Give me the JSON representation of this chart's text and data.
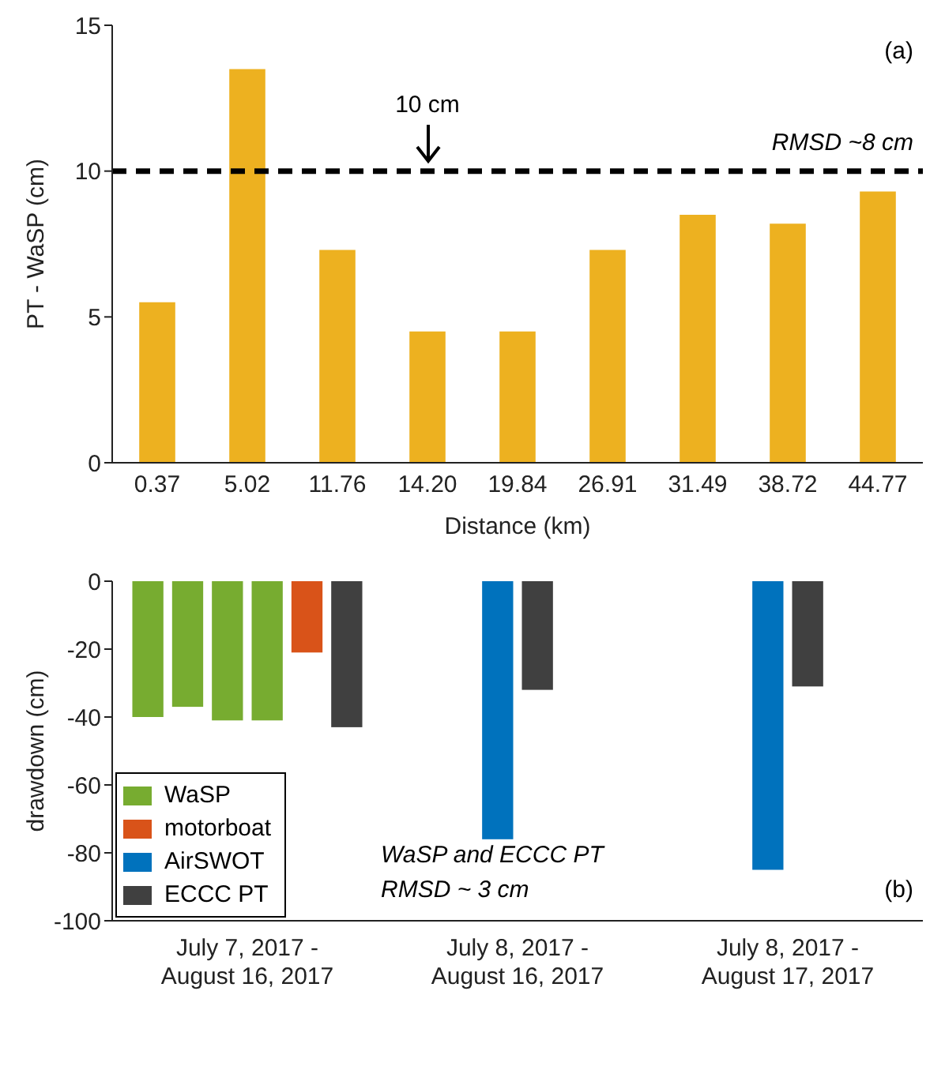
{
  "chart_data": [
    {
      "type": "bar",
      "categories": [
        "0.37",
        "5.02",
        "11.76",
        "14.20",
        "19.84",
        "26.91",
        "31.49",
        "38.72",
        "44.77"
      ],
      "values": [
        5.5,
        13.5,
        7.3,
        4.5,
        4.5,
        7.3,
        8.5,
        8.2,
        9.3
      ],
      "color": "#edb120",
      "xlabel": "Distance (km)",
      "ylabel": "PT - WaSP (cm)",
      "ylim": [
        0,
        15
      ],
      "yticks": [
        0,
        5,
        10,
        15
      ],
      "ref_lines": [
        {
          "axis": "y",
          "value": 10,
          "label": null,
          "color": "#000000",
          "line_style": "dashed"
        }
      ],
      "annotations": [
        "(a)",
        {
          "text": "10 cm",
          "x": "14.20",
          "y": 10
        },
        "RMSD ~8 cm"
      ]
    },
    {
      "type": "bar",
      "categories": [
        "July 7, 2017 -\nAugust 16, 2017",
        "July 8, 2017 -\nAugust 16, 2017",
        "July 8, 2017 -\nAugust 17, 2017"
      ],
      "ylabel": "drawdown (cm)",
      "ylim": [
        -100,
        0
      ],
      "yticks": [
        -100,
        -80,
        -60,
        -40,
        -20,
        0
      ],
      "legend": "bottom left",
      "series": [
        {
          "name": "WaSP",
          "color": "#77ac30",
          "values": [
            -40,
            null,
            null
          ]
        },
        {
          "color": "#77ac30",
          "values": [
            -37,
            null,
            null
          ]
        },
        {
          "color": "#77ac30",
          "values": [
            -41,
            null,
            null
          ]
        },
        {
          "color": "#77ac30",
          "values": [
            -41,
            null,
            null
          ]
        },
        {
          "name": "motorboat",
          "color": "#d95319",
          "values": [
            -21,
            null,
            null
          ]
        },
        {
          "name": "AirSWOT",
          "color": "#0072bd",
          "values": [
            null,
            -76,
            -85
          ]
        },
        {
          "name": "ECCC PT",
          "color": "#404040",
          "values": [
            -43,
            -32,
            -31
          ]
        }
      ],
      "annotations": [
        "WaSP and ECCC PT",
        "RMSD ~ 3 cm",
        "(b)"
      ]
    }
  ]
}
